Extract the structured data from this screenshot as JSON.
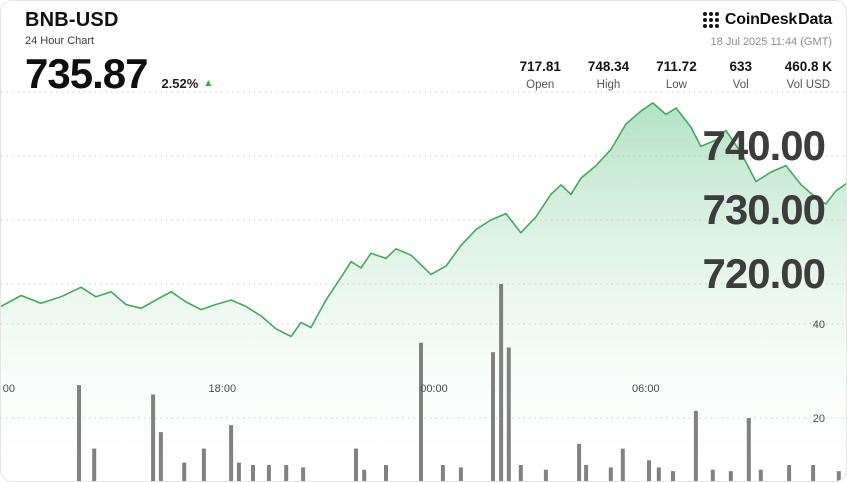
{
  "header": {
    "symbol": "BNB-USD",
    "subtitle": "24 Hour Chart",
    "price": "735.87",
    "change_percent": "2.52%",
    "change_direction": "up",
    "up_arrow": "▲"
  },
  "brand": {
    "name_primary": "CoinDesk",
    "name_secondary": "Data"
  },
  "timestamp": "18 Jul 2025 11:44 (GMT)",
  "stats": [
    {
      "value": "717.81",
      "label": "Open"
    },
    {
      "value": "748.34",
      "label": "High"
    },
    {
      "value": "711.72",
      "label": "Low"
    },
    {
      "value": "633",
      "label": "Vol"
    },
    {
      "value": "460.8 K",
      "label": "Vol USD"
    }
  ],
  "colors": {
    "line": "#43a95e",
    "fill_top": "#74ca93",
    "fill_bottom": "#ffffff",
    "volume": "#6b6b6b",
    "grid": "#c9c9c9",
    "change_green": "#22b84c"
  },
  "chart_data": {
    "type": "area",
    "title": "BNB-USD 24 Hour Chart",
    "x_axis": {
      "span_hours": 24,
      "labels": [
        {
          "label": "00",
          "t": 0.05
        },
        {
          "label": "18:00",
          "t": 6.27
        },
        {
          "label": "00:00",
          "t": 12.27
        },
        {
          "label": "06:00",
          "t": 18.27
        }
      ]
    },
    "price_axis": {
      "side": "right",
      "ylim": [
        705,
        755
      ],
      "gridline_values": [
        750,
        740,
        730,
        720
      ],
      "ticks": [
        {
          "label": "740.00",
          "value": 740
        },
        {
          "label": "730.00",
          "value": 730
        },
        {
          "label": "720.00",
          "value": 720
        }
      ]
    },
    "volume_axis": {
      "side": "right",
      "ylim": [
        0,
        50
      ],
      "ticks": [
        {
          "label": "40",
          "value": 40
        },
        {
          "label": "20",
          "value": 20
        }
      ]
    },
    "price_series": [
      [
        0,
        716.5
      ],
      [
        0.57,
        718.2
      ],
      [
        1.13,
        717.0
      ],
      [
        1.7,
        718.0
      ],
      [
        2.27,
        719.5
      ],
      [
        2.69,
        718.0
      ],
      [
        3.12,
        718.8
      ],
      [
        3.54,
        716.8
      ],
      [
        3.97,
        716.2
      ],
      [
        4.39,
        717.5
      ],
      [
        4.82,
        718.8
      ],
      [
        5.24,
        717.2
      ],
      [
        5.67,
        716.0
      ],
      [
        6.09,
        716.8
      ],
      [
        6.52,
        717.5
      ],
      [
        6.94,
        716.5
      ],
      [
        7.37,
        715.0
      ],
      [
        7.79,
        713.0
      ],
      [
        8.22,
        711.8
      ],
      [
        8.5,
        714.0
      ],
      [
        8.78,
        713.2
      ],
      [
        9.21,
        717.5
      ],
      [
        9.63,
        721.0
      ],
      [
        9.92,
        723.5
      ],
      [
        10.2,
        722.5
      ],
      [
        10.48,
        724.8
      ],
      [
        10.91,
        724.0
      ],
      [
        11.19,
        725.5
      ],
      [
        11.62,
        724.5
      ],
      [
        11.9,
        723.0
      ],
      [
        12.18,
        721.5
      ],
      [
        12.61,
        722.8
      ],
      [
        13.03,
        726.0
      ],
      [
        13.46,
        728.5
      ],
      [
        13.88,
        730.0
      ],
      [
        14.31,
        731.0
      ],
      [
        14.73,
        728.0
      ],
      [
        15.16,
        730.5
      ],
      [
        15.58,
        734.0
      ],
      [
        15.87,
        735.5
      ],
      [
        16.15,
        734.0
      ],
      [
        16.43,
        736.5
      ],
      [
        16.86,
        738.5
      ],
      [
        17.28,
        741.0
      ],
      [
        17.71,
        745.0
      ],
      [
        18.13,
        747.0
      ],
      [
        18.47,
        748.3
      ],
      [
        18.84,
        746.5
      ],
      [
        19.13,
        747.5
      ],
      [
        19.55,
        744.5
      ],
      [
        19.83,
        741.5
      ],
      [
        20.26,
        742.5
      ],
      [
        20.54,
        744.0
      ],
      [
        20.97,
        740.5
      ],
      [
        21.39,
        736.0
      ],
      [
        21.82,
        737.5
      ],
      [
        22.24,
        738.5
      ],
      [
        22.67,
        735.5
      ],
      [
        23.09,
        733.5
      ],
      [
        23.37,
        732.5
      ],
      [
        23.65,
        734.5
      ],
      [
        24,
        735.87
      ]
    ],
    "volume_bars": [
      [
        2.21,
        27
      ],
      [
        2.64,
        13.5
      ],
      [
        4.31,
        25
      ],
      [
        4.53,
        17
      ],
      [
        5.19,
        10.5
      ],
      [
        5.75,
        13.5
      ],
      [
        6.52,
        18.5
      ],
      [
        6.74,
        10.5
      ],
      [
        7.14,
        10
      ],
      [
        7.59,
        10
      ],
      [
        8.08,
        10
      ],
      [
        8.56,
        9.5
      ],
      [
        10.06,
        13.5
      ],
      [
        10.29,
        9
      ],
      [
        10.91,
        10
      ],
      [
        11.9,
        36
      ],
      [
        12.52,
        10
      ],
      [
        13.03,
        9.5
      ],
      [
        13.94,
        34
      ],
      [
        14.17,
        48.5
      ],
      [
        14.39,
        35
      ],
      [
        14.73,
        10
      ],
      [
        15.44,
        9
      ],
      [
        16.38,
        14.5
      ],
      [
        16.58,
        10
      ],
      [
        17.28,
        9.5
      ],
      [
        17.62,
        13.5
      ],
      [
        18.36,
        11
      ],
      [
        18.64,
        9.5
      ],
      [
        19.04,
        8.7
      ],
      [
        19.69,
        21.5
      ],
      [
        20.17,
        9
      ],
      [
        20.68,
        8.7
      ],
      [
        21.19,
        20
      ],
      [
        21.53,
        9
      ],
      [
        22.33,
        10
      ],
      [
        23.01,
        10
      ],
      [
        23.74,
        8.7
      ]
    ]
  }
}
